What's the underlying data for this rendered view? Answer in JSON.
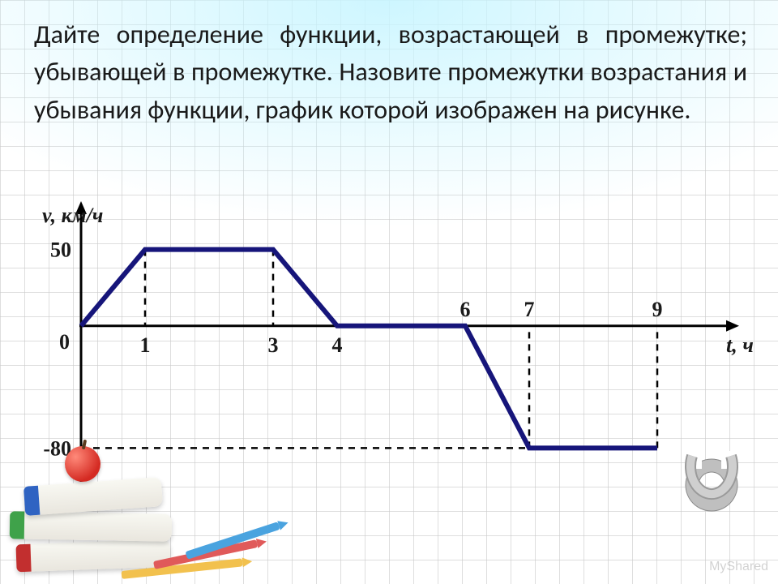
{
  "question_text": "Дайте определение функции, возрастающей в промежутке; убывающей в промежутке. Назовите промежутки возрастания и убывания функции, график которой изображен на рисунке.",
  "watermark": "MyShared",
  "chart": {
    "type": "line",
    "x_label": "t, ч",
    "y_label": "v, км/ч",
    "x_ticks_below": [
      1,
      3,
      4
    ],
    "x_ticks_above": [
      6,
      7,
      9
    ],
    "y_ticks": [
      50,
      -80
    ],
    "origin_label": "0",
    "x_range": [
      0,
      10
    ],
    "y_range": [
      -100,
      70
    ],
    "line_points": [
      {
        "t": 0,
        "v": 0
      },
      {
        "t": 1,
        "v": 50
      },
      {
        "t": 3,
        "v": 50
      },
      {
        "t": 4,
        "v": 0
      },
      {
        "t": 6,
        "v": 0
      },
      {
        "t": 7,
        "v": -80
      },
      {
        "t": 9,
        "v": -80
      }
    ],
    "drop_lines_full": [
      {
        "t": 1,
        "v": 50
      },
      {
        "t": 3,
        "v": 50
      },
      {
        "t": 7,
        "v": -80
      },
      {
        "t": 9,
        "v": -80
      }
    ],
    "h_guide": {
      "v": -80,
      "t_from": 0,
      "t_to": 9
    },
    "colors": {
      "axis": "#000000",
      "series": "#16157a",
      "drop": "#000000",
      "text": "#1a1a1a"
    },
    "line_width": 6,
    "drop_dash": "8 7",
    "font": {
      "question_size": 32,
      "tick_size": 26,
      "axis_label_size": 26
    }
  }
}
